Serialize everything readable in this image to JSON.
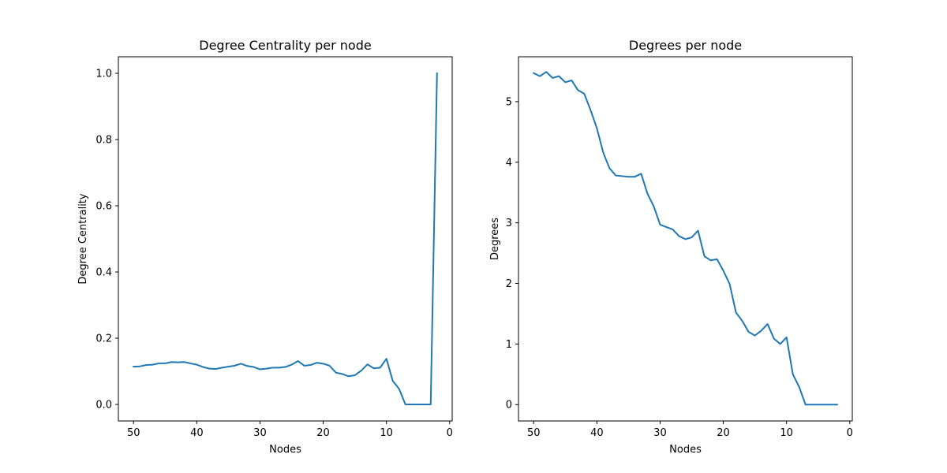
{
  "chart_data": [
    {
      "type": "line",
      "title": "Degree Centrality per node",
      "xlabel": "Nodes",
      "ylabel": "Degree Centrality",
      "xlim": [
        52.4,
        -0.4
      ],
      "ylim": [
        -0.05,
        1.05
      ],
      "x_ticks": [
        50,
        40,
        30,
        20,
        10,
        0
      ],
      "y_ticks": [
        0.0,
        0.2,
        0.4,
        0.6,
        0.8,
        1.0
      ],
      "x_tick_labels": [
        "50",
        "40",
        "30",
        "20",
        "10",
        "0"
      ],
      "y_tick_labels": [
        "0.0",
        "0.2",
        "0.4",
        "0.6",
        "0.8",
        "1.0"
      ],
      "grid": false,
      "color": "#1f77b4",
      "series": [
        {
          "x": [
            50,
            49,
            48,
            47,
            46,
            45,
            44,
            43,
            42,
            41,
            40,
            39,
            38,
            37,
            36,
            35,
            34,
            33,
            32,
            31,
            30,
            29,
            28,
            27,
            26,
            25,
            24,
            23,
            22,
            21,
            20,
            19,
            18,
            17,
            16,
            15,
            14,
            13,
            12,
            11,
            10,
            9,
            8,
            7,
            6,
            5,
            4,
            3,
            2
          ],
          "values": [
            0.114,
            0.115,
            0.119,
            0.12,
            0.124,
            0.124,
            0.128,
            0.127,
            0.128,
            0.124,
            0.12,
            0.113,
            0.108,
            0.107,
            0.111,
            0.114,
            0.117,
            0.123,
            0.116,
            0.113,
            0.106,
            0.108,
            0.111,
            0.111,
            0.113,
            0.12,
            0.131,
            0.117,
            0.119,
            0.126,
            0.123,
            0.117,
            0.096,
            0.092,
            0.085,
            0.088,
            0.102,
            0.121,
            0.109,
            0.111,
            0.138,
            0.071,
            0.047,
            0.0,
            0.0,
            0.0,
            0.0,
            0.0,
            1.0
          ]
        }
      ]
    },
    {
      "type": "line",
      "title": "Degrees per node",
      "xlabel": "Nodes",
      "ylabel": "Degrees",
      "xlim": [
        52.4,
        -0.4
      ],
      "ylim": [
        -0.27,
        5.74
      ],
      "x_ticks": [
        50,
        40,
        30,
        20,
        10,
        0
      ],
      "y_ticks": [
        0,
        1,
        2,
        3,
        4,
        5
      ],
      "x_tick_labels": [
        "50",
        "40",
        "30",
        "20",
        "10",
        "0"
      ],
      "y_tick_labels": [
        "0",
        "1",
        "2",
        "3",
        "4",
        "5"
      ],
      "grid": false,
      "color": "#1f77b4",
      "series": [
        {
          "x": [
            50,
            49,
            48,
            47,
            46,
            45,
            44,
            43,
            42,
            41,
            40,
            39,
            38,
            37,
            36,
            35,
            34,
            33,
            32,
            31,
            30,
            29,
            28,
            27,
            26,
            25,
            24,
            23,
            22,
            21,
            20,
            19,
            18,
            17,
            16,
            15,
            14,
            13,
            12,
            11,
            10,
            9,
            8,
            7,
            6,
            5,
            4,
            3,
            2
          ],
          "values": [
            5.47,
            5.42,
            5.49,
            5.39,
            5.42,
            5.32,
            5.35,
            5.19,
            5.13,
            4.86,
            4.56,
            4.16,
            3.9,
            3.78,
            3.77,
            3.76,
            3.76,
            3.81,
            3.48,
            3.27,
            2.97,
            2.93,
            2.89,
            2.78,
            2.73,
            2.76,
            2.87,
            2.45,
            2.38,
            2.4,
            2.21,
            1.99,
            1.52,
            1.38,
            1.2,
            1.14,
            1.22,
            1.33,
            1.09,
            1.0,
            1.11,
            0.5,
            0.29,
            0.0,
            0.0,
            0.0,
            0.0,
            0.0,
            0.0
          ]
        }
      ]
    }
  ]
}
